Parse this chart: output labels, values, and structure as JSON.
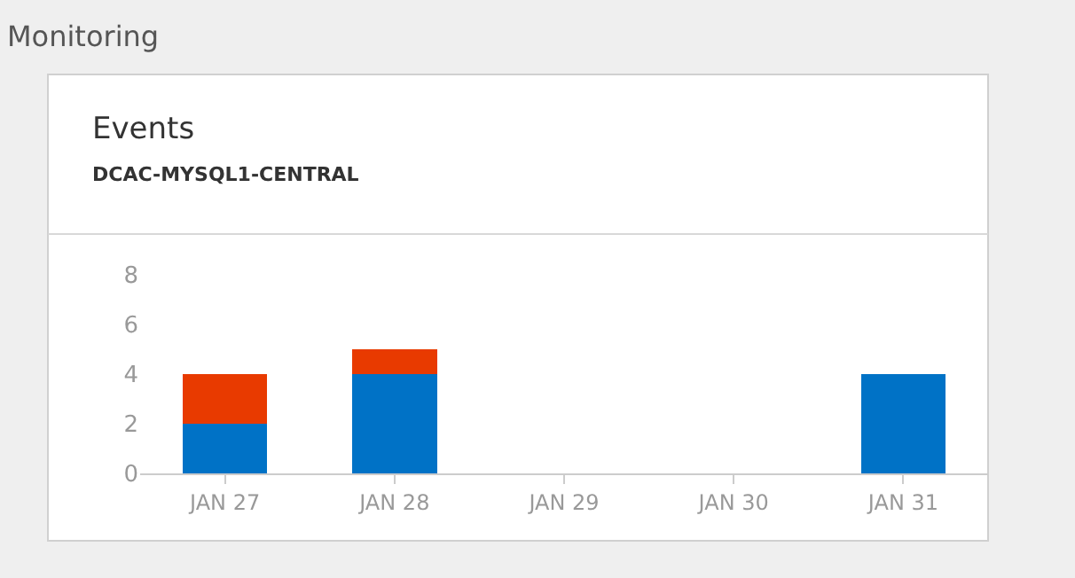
{
  "chart_data": {
    "type": "bar",
    "title": "Events",
    "subtitle": "DCAC-MYSQL1-CENTRAL",
    "annotations": [
      "Monitoring"
    ],
    "categories": [
      "JAN 27",
      "JAN 28",
      "JAN 29",
      "JAN 30",
      "JAN 31"
    ],
    "stacked": true,
    "series": [
      {
        "color": "#0072c6",
        "values": [
          2,
          4,
          null,
          null,
          4
        ]
      },
      {
        "color": "#e83a00",
        "values": [
          2,
          1,
          null,
          null,
          null
        ]
      }
    ],
    "ylim": [
      0,
      8
    ],
    "yticks": [
      0,
      2,
      4,
      6,
      8
    ],
    "grid": false
  }
}
